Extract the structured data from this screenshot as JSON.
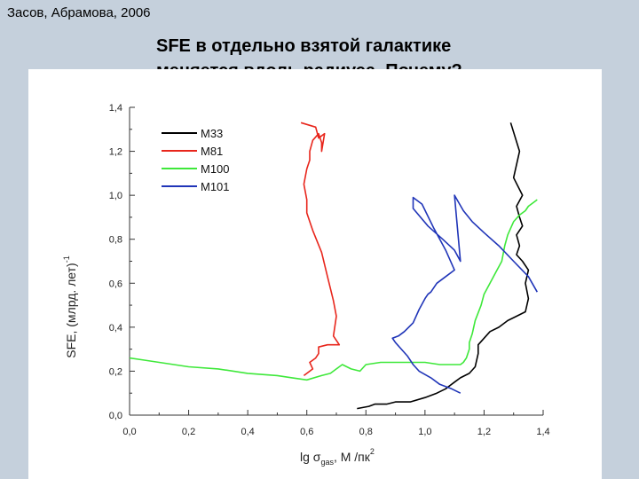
{
  "slide": {
    "citation": "Засов, Абрамова, 2006",
    "title_line1": "SFE в отдельно взятой галактике",
    "title_line2": "меняется вдоль радиуса. Почему?"
  },
  "colors": {
    "background": "#c5d0dc",
    "panel": "#ffffff",
    "M33": "#000000",
    "M81": "#e8261c",
    "M100": "#3ee83a",
    "M101": "#2035b8"
  },
  "chart_data": {
    "type": "line",
    "xlabel": "lg σ",
    "xlabel_sub": "gas",
    "xlabel_unit": ", M /пк",
    "xlabel_sup": "2",
    "ylabel": "SFE, (млрд. лет)",
    "ylabel_sup": "-1",
    "xlim": [
      0.0,
      1.4
    ],
    "ylim": [
      0.0,
      1.4
    ],
    "x_ticks": [
      "0,0",
      "0,2",
      "0,4",
      "0,6",
      "0,8",
      "1,0",
      "1,2",
      "1,4"
    ],
    "y_ticks": [
      "0,0",
      "0,2",
      "0,4",
      "0,6",
      "0,8",
      "1,0",
      "1,2",
      "1,4"
    ],
    "legend_position": "top-left",
    "grid": false,
    "series": [
      {
        "name": "M33",
        "x": [
          0.77,
          0.81,
          0.83,
          0.87,
          0.9,
          0.95,
          1.0,
          1.04,
          1.07,
          1.1,
          1.12,
          1.15,
          1.17,
          1.18,
          1.18,
          1.2,
          1.22,
          1.25,
          1.28,
          1.31,
          1.34,
          1.35,
          1.34,
          1.35,
          1.33,
          1.31,
          1.32,
          1.31,
          1.33,
          1.32,
          1.31,
          1.33,
          1.3,
          1.32,
          1.29
        ],
        "y": [
          0.03,
          0.04,
          0.05,
          0.05,
          0.06,
          0.06,
          0.08,
          0.1,
          0.12,
          0.15,
          0.17,
          0.19,
          0.22,
          0.28,
          0.32,
          0.35,
          0.38,
          0.4,
          0.43,
          0.45,
          0.47,
          0.53,
          0.6,
          0.66,
          0.7,
          0.73,
          0.77,
          0.82,
          0.86,
          0.9,
          0.95,
          1.0,
          1.08,
          1.2,
          1.33
        ]
      },
      {
        "name": "M81",
        "x": [
          0.59,
          0.62,
          0.61,
          0.63,
          0.64,
          0.64,
          0.67,
          0.71,
          0.69,
          0.7,
          0.69,
          0.67,
          0.65,
          0.62,
          0.6,
          0.6,
          0.59,
          0.6,
          0.61,
          0.61,
          0.62,
          0.64,
          0.65,
          0.65,
          0.66,
          0.64,
          0.63,
          0.58
        ],
        "y": [
          0.18,
          0.21,
          0.24,
          0.26,
          0.28,
          0.31,
          0.32,
          0.32,
          0.36,
          0.45,
          0.52,
          0.63,
          0.74,
          0.84,
          0.92,
          0.98,
          1.05,
          1.12,
          1.16,
          1.2,
          1.25,
          1.28,
          1.24,
          1.2,
          1.28,
          1.26,
          1.31,
          1.33
        ]
      },
      {
        "name": "M100",
        "x": [
          0.0,
          0.05,
          0.1,
          0.2,
          0.3,
          0.4,
          0.5,
          0.55,
          0.6,
          0.65,
          0.68,
          0.7,
          0.72,
          0.75,
          0.78,
          0.8,
          0.85,
          0.9,
          1.0,
          1.05,
          1.1,
          1.12,
          1.13,
          1.14,
          1.15,
          1.15,
          1.16,
          1.17,
          1.19,
          1.2,
          1.22,
          1.24,
          1.26,
          1.27,
          1.28,
          1.29,
          1.3,
          1.32,
          1.34,
          1.35,
          1.37,
          1.38
        ],
        "y": [
          0.26,
          0.25,
          0.24,
          0.22,
          0.21,
          0.19,
          0.18,
          0.17,
          0.16,
          0.18,
          0.19,
          0.21,
          0.23,
          0.21,
          0.2,
          0.23,
          0.24,
          0.24,
          0.24,
          0.23,
          0.23,
          0.23,
          0.24,
          0.26,
          0.3,
          0.33,
          0.37,
          0.43,
          0.5,
          0.55,
          0.6,
          0.65,
          0.7,
          0.77,
          0.82,
          0.85,
          0.88,
          0.91,
          0.93,
          0.95,
          0.97,
          0.98
        ]
      },
      {
        "name": "M101",
        "x": [
          1.12,
          1.09,
          1.05,
          1.02,
          0.98,
          0.96,
          0.94,
          0.92,
          0.9,
          0.89,
          0.91,
          0.93,
          0.96,
          0.98,
          1.0,
          1.01,
          1.02,
          1.04,
          1.07,
          1.1,
          1.07,
          1.03,
          0.99,
          0.96,
          0.96,
          1.01,
          1.06,
          1.1,
          1.12,
          1.1,
          1.13,
          1.16,
          1.2,
          1.25,
          1.3,
          1.35,
          1.38
        ],
        "y": [
          0.1,
          0.12,
          0.14,
          0.17,
          0.2,
          0.23,
          0.27,
          0.3,
          0.33,
          0.35,
          0.36,
          0.38,
          0.42,
          0.48,
          0.53,
          0.55,
          0.56,
          0.6,
          0.63,
          0.66,
          0.75,
          0.85,
          0.96,
          0.99,
          0.94,
          0.86,
          0.8,
          0.75,
          0.7,
          1.0,
          0.93,
          0.88,
          0.83,
          0.77,
          0.7,
          0.63,
          0.56
        ]
      }
    ]
  }
}
